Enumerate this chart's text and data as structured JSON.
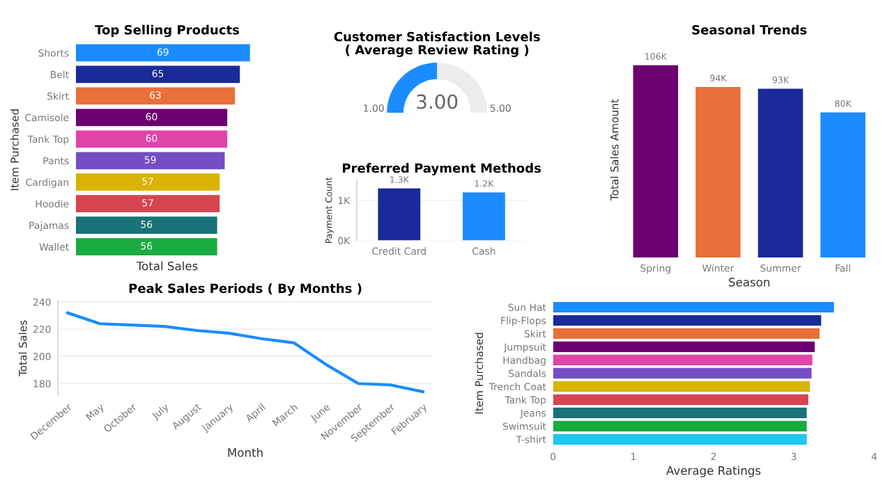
{
  "chart_data": [
    {
      "type": "bar",
      "orientation": "horizontal",
      "title": "Top Selling Products",
      "xlabel": "Total Sales",
      "ylabel": "Item Purchased",
      "categories": [
        "Shorts",
        "Belt",
        "Skirt",
        "Camisole",
        "Tank Top",
        "Pants",
        "Cardigan",
        "Hoodie",
        "Pajamas",
        "Wallet"
      ],
      "values": [
        69,
        65,
        63,
        60,
        60,
        59,
        57,
        57,
        56,
        56
      ],
      "colors": [
        "#1a8cff",
        "#1a2a9a",
        "#e8703a",
        "#6b0070",
        "#e044a7",
        "#744ec2",
        "#d9b300",
        "#d64550",
        "#197278",
        "#1aab40"
      ],
      "data_labels": true,
      "tick_labels": "y"
    },
    {
      "type": "donut",
      "title": "Customer Satisfaction Levels ( Average Review Rating )",
      "categories": [
        null,
        null
      ],
      "values": [
        50,
        50
      ],
      "colors": [
        "#1a8cff",
        "#ececec"
      ],
      "annotations": [
        "1.00",
        "3.00",
        "5.00"
      ]
    },
    {
      "type": "bar",
      "title": "Preferred Payment Methods",
      "ylabel": "Payment Count",
      "categories": [
        "Credit Card",
        "Cash"
      ],
      "values": [
        1300,
        1200
      ],
      "value_labels": [
        "1.3K",
        "1.2K"
      ],
      "colors": [
        "#1a2a9a",
        "#1a8cff"
      ],
      "ylim": [
        0,
        1500
      ],
      "yticks": [
        {
          "value": 0,
          "label": "0K"
        },
        {
          "value": 1000,
          "label": "1K"
        }
      ],
      "grid": "y"
    },
    {
      "type": "bar",
      "title": "Seasonal Trends",
      "xlabel": "Season",
      "ylabel": "Total Sales Amount",
      "categories": [
        "Spring",
        "Winter",
        "Summer",
        "Fall"
      ],
      "values": [
        106000,
        94000,
        93000,
        80000
      ],
      "value_labels": [
        "106K",
        "94K",
        "93K",
        "80K"
      ],
      "colors": [
        "#6b0070",
        "#e8703a",
        "#1a2a9a",
        "#1a8cff"
      ],
      "tick_labels": "x"
    },
    {
      "type": "line",
      "title": "Peak Sales Periods ( By Months )",
      "xlabel": "Month",
      "ylabel": "Total Sales",
      "categories": [
        "December",
        "May",
        "October",
        "July",
        "August",
        "January",
        "April",
        "March",
        "June",
        "November",
        "September",
        "February"
      ],
      "values": [
        232,
        224,
        223,
        222,
        219,
        217,
        213,
        210,
        194,
        180,
        179,
        174
      ],
      "color": "#1a8cff",
      "ylim": [
        171,
        241
      ],
      "yticks": [
        180,
        200,
        220,
        240
      ],
      "grid": "y"
    },
    {
      "type": "bar",
      "orientation": "horizontal",
      "xlabel": "Average Ratings",
      "ylabel": "Item Purchased",
      "categories": [
        "Sun Hat",
        "Flip-Flops",
        "Skirt",
        "Jumpsuit",
        "Handbag",
        "Sandals",
        "Trench Coat",
        "Tank Top",
        "Jeans",
        "Swimsuit",
        "T-shirt"
      ],
      "values": [
        3.5,
        3.34,
        3.32,
        3.26,
        3.23,
        3.22,
        3.2,
        3.18,
        3.16,
        3.16,
        3.16
      ],
      "colors": [
        "#1a8cff",
        "#1a2a9a",
        "#e8703a",
        "#6b0070",
        "#e044a7",
        "#744ec2",
        "#d9b300",
        "#d64550",
        "#197278",
        "#1aab40",
        "#1ec8f0"
      ],
      "xlim": [
        0,
        4
      ],
      "xticks": [
        0,
        1,
        2,
        3,
        4
      ]
    }
  ]
}
